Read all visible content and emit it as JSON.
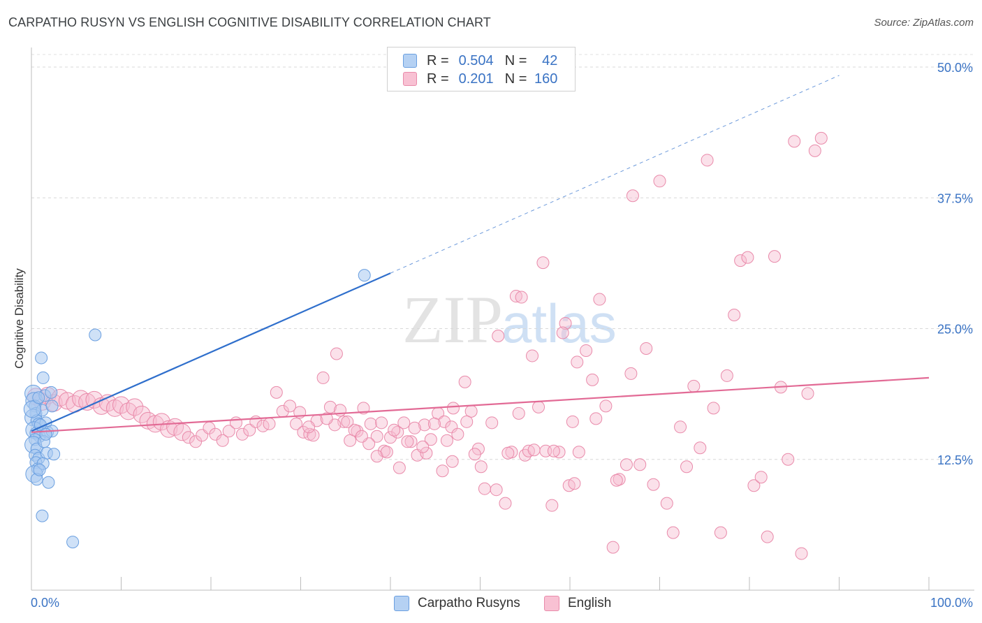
{
  "header": {
    "title": "CARPATHO RUSYN VS ENGLISH COGNITIVE DISABILITY CORRELATION CHART",
    "source": "Source: ZipAtlas.com"
  },
  "watermark": {
    "zip": "ZIP",
    "atlas": "atlas"
  },
  "legend": {
    "rows": [
      {
        "r_label": "R =",
        "r_value": "0.504",
        "n_label": "N =",
        "n_value": "42"
      },
      {
        "r_label": "R =",
        "r_value": "0.201",
        "n_label": "N =",
        "n_value": "160"
      }
    ]
  },
  "bottom_legend": [
    {
      "label": "Carpatho Rusyns"
    },
    {
      "label": "English"
    }
  ],
  "chart_data": {
    "type": "scatter",
    "title": "CARPATHO RUSYN VS ENGLISH COGNITIVE DISABILITY CORRELATION CHART",
    "xlabel": "",
    "ylabel": "Cognitive Disability",
    "xlim": [
      0,
      100
    ],
    "ylim": [
      0,
      50
    ],
    "x_tick_labels": [
      "0.0%",
      "100.0%"
    ],
    "y_ticks": [
      12.5,
      25.0,
      37.5,
      50.0
    ],
    "y_tick_labels": [
      "12.5%",
      "25.0%",
      "37.5%",
      "50.0%"
    ],
    "grid": true,
    "colors": {
      "blue_fill": "#a8c8f0",
      "blue_stroke": "#6a9fe0",
      "blue_line": "#2f6fcc",
      "pink_fill": "#f7bcd0",
      "pink_stroke": "#e98aaa",
      "pink_line": "#e26a95",
      "tick_text": "#3a73c4"
    },
    "series": [
      {
        "name": "Carpatho Rusyns",
        "color": "#a8c8f0",
        "trend": {
          "x0": 0,
          "y0": 15.2,
          "x1": 40.0,
          "y1": 30.3,
          "dashed_to_x": 90.0,
          "dashed_to_y": 49.2
        },
        "points": [
          [
            0.2,
            18.8
          ],
          [
            0.3,
            18.1
          ],
          [
            0.4,
            17.6
          ],
          [
            0.5,
            16.9
          ],
          [
            0.2,
            16.5
          ],
          [
            0.6,
            16.2
          ],
          [
            0.8,
            15.9
          ],
          [
            0.3,
            15.3
          ],
          [
            0.5,
            15.0
          ],
          [
            0.9,
            14.7
          ],
          [
            0.4,
            14.4
          ],
          [
            0.2,
            13.9
          ],
          [
            0.6,
            13.5
          ],
          [
            0.4,
            12.9
          ],
          [
            0.8,
            12.6
          ],
          [
            0.5,
            12.2
          ],
          [
            0.7,
            11.6
          ],
          [
            0.3,
            11.1
          ],
          [
            0.6,
            10.6
          ],
          [
            1.1,
            22.2
          ],
          [
            1.3,
            20.3
          ],
          [
            1.5,
            18.6
          ],
          [
            1.2,
            17.2
          ],
          [
            1.6,
            16.0
          ],
          [
            1.8,
            15.1
          ],
          [
            1.4,
            14.2
          ],
          [
            1.7,
            13.1
          ],
          [
            1.3,
            12.1
          ],
          [
            1.9,
            10.3
          ],
          [
            1.2,
            7.1
          ],
          [
            2.3,
            15.2
          ],
          [
            2.5,
            13.0
          ],
          [
            2.3,
            17.6
          ],
          [
            2.2,
            18.9
          ],
          [
            1.0,
            15.8
          ],
          [
            0.9,
            11.5
          ],
          [
            1.6,
            14.9
          ],
          [
            4.6,
            4.6
          ],
          [
            7.1,
            24.4
          ],
          [
            37.1,
            30.1
          ],
          [
            0.1,
            17.3
          ],
          [
            0.8,
            18.4
          ]
        ]
      },
      {
        "name": "English",
        "color": "#f7bcd0",
        "trend": {
          "x0": 0,
          "y0": 15.1,
          "x1": 100,
          "y1": 20.3
        },
        "points": [
          [
            0.5,
            18.5
          ],
          [
            1.2,
            18.0
          ],
          [
            1.8,
            18.6
          ],
          [
            2.5,
            17.9
          ],
          [
            3.2,
            18.4
          ],
          [
            4.0,
            18.1
          ],
          [
            4.8,
            17.8
          ],
          [
            5.5,
            18.3
          ],
          [
            6.2,
            18.0
          ],
          [
            7.0,
            18.2
          ],
          [
            7.8,
            17.6
          ],
          [
            8.5,
            17.9
          ],
          [
            9.3,
            17.4
          ],
          [
            10.0,
            17.7
          ],
          [
            10.8,
            17.1
          ],
          [
            11.5,
            17.5
          ],
          [
            12.3,
            16.8
          ],
          [
            13.0,
            16.2
          ],
          [
            13.8,
            15.9
          ],
          [
            14.5,
            16.1
          ],
          [
            15.3,
            15.4
          ],
          [
            16.0,
            15.6
          ],
          [
            16.8,
            15.1
          ],
          [
            17.5,
            14.6
          ],
          [
            18.3,
            14.2
          ],
          [
            19.0,
            14.8
          ],
          [
            19.8,
            15.5
          ],
          [
            20.5,
            14.9
          ],
          [
            21.3,
            14.3
          ],
          [
            22.0,
            15.2
          ],
          [
            22.8,
            16.0
          ],
          [
            23.5,
            14.9
          ],
          [
            24.3,
            15.3
          ],
          [
            25.0,
            16.1
          ],
          [
            25.8,
            15.7
          ],
          [
            26.5,
            15.9
          ],
          [
            27.3,
            18.9
          ],
          [
            28.0,
            17.1
          ],
          [
            28.8,
            17.6
          ],
          [
            29.5,
            15.9
          ],
          [
            30.3,
            15.1
          ],
          [
            31.0,
            14.9
          ],
          [
            31.8,
            16.2
          ],
          [
            32.5,
            20.3
          ],
          [
            33.3,
            17.5
          ],
          [
            34.0,
            22.6
          ],
          [
            34.8,
            16.1
          ],
          [
            35.5,
            14.3
          ],
          [
            36.3,
            15.2
          ],
          [
            37.0,
            17.4
          ],
          [
            37.8,
            15.9
          ],
          [
            38.5,
            14.7
          ],
          [
            39.3,
            13.3
          ],
          [
            40.0,
            14.6
          ],
          [
            40.8,
            15.1
          ],
          [
            41.5,
            16.0
          ],
          [
            42.3,
            14.2
          ],
          [
            43.0,
            12.9
          ],
          [
            43.8,
            15.8
          ],
          [
            44.5,
            14.4
          ],
          [
            45.3,
            16.9
          ],
          [
            46.0,
            16.1
          ],
          [
            46.8,
            15.6
          ],
          [
            47.5,
            14.9
          ],
          [
            48.3,
            19.9
          ],
          [
            49.0,
            17.1
          ],
          [
            49.8,
            13.5
          ],
          [
            50.5,
            9.7
          ],
          [
            51.3,
            16.0
          ],
          [
            52.0,
            24.3
          ],
          [
            52.8,
            8.3
          ],
          [
            53.5,
            13.2
          ],
          [
            54.3,
            16.9
          ],
          [
            55.0,
            12.9
          ],
          [
            55.8,
            22.4
          ],
          [
            56.5,
            17.5
          ],
          [
            57.3,
            13.3
          ],
          [
            58.0,
            8.1
          ],
          [
            58.8,
            13.2
          ],
          [
            59.5,
            25.5
          ],
          [
            60.3,
            16.1
          ],
          [
            61.0,
            13.2
          ],
          [
            61.8,
            22.9
          ],
          [
            62.5,
            20.1
          ],
          [
            63.3,
            27.8
          ],
          [
            64.0,
            17.6
          ],
          [
            64.8,
            4.1
          ],
          [
            65.5,
            10.6
          ],
          [
            66.3,
            12.0
          ],
          [
            67.0,
            37.7
          ],
          [
            67.8,
            12.0
          ],
          [
            68.5,
            23.1
          ],
          [
            69.3,
            10.1
          ],
          [
            70.0,
            39.1
          ],
          [
            70.8,
            8.3
          ],
          [
            71.5,
            5.5
          ],
          [
            72.3,
            15.6
          ],
          [
            73.0,
            11.8
          ],
          [
            73.8,
            19.5
          ],
          [
            74.5,
            13.6
          ],
          [
            75.3,
            41.1
          ],
          [
            76.0,
            17.4
          ],
          [
            76.8,
            5.5
          ],
          [
            77.5,
            20.5
          ],
          [
            78.3,
            26.3
          ],
          [
            79.0,
            31.5
          ],
          [
            79.8,
            31.8
          ],
          [
            80.5,
            10.0
          ],
          [
            81.3,
            10.8
          ],
          [
            82.0,
            5.1
          ],
          [
            82.8,
            31.9
          ],
          [
            83.5,
            19.4
          ],
          [
            84.3,
            12.5
          ],
          [
            85.0,
            42.9
          ],
          [
            85.8,
            3.5
          ],
          [
            86.5,
            18.8
          ],
          [
            87.3,
            42.0
          ],
          [
            88.0,
            43.2
          ],
          [
            47.0,
            17.4
          ],
          [
            48.5,
            16.1
          ],
          [
            38.5,
            12.8
          ],
          [
            36.0,
            15.3
          ],
          [
            41.0,
            11.7
          ],
          [
            44.0,
            13.1
          ],
          [
            57.0,
            31.3
          ],
          [
            54.0,
            28.1
          ],
          [
            54.6,
            28.0
          ],
          [
            59.2,
            24.6
          ],
          [
            60.8,
            21.8
          ],
          [
            62.9,
            16.4
          ],
          [
            59.9,
            10.0
          ],
          [
            60.5,
            10.2
          ],
          [
            66.8,
            20.7
          ],
          [
            65.2,
            10.5
          ],
          [
            39.6,
            13.2
          ],
          [
            42.7,
            15.5
          ],
          [
            44.9,
            15.9
          ],
          [
            46.3,
            14.3
          ],
          [
            50.1,
            11.8
          ],
          [
            51.8,
            9.6
          ],
          [
            53.1,
            13.1
          ],
          [
            55.4,
            13.3
          ],
          [
            56.0,
            13.4
          ],
          [
            58.2,
            13.3
          ],
          [
            49.4,
            13.0
          ],
          [
            46.9,
            12.3
          ],
          [
            45.8,
            11.4
          ],
          [
            43.6,
            13.7
          ],
          [
            41.9,
            14.2
          ],
          [
            40.4,
            15.3
          ],
          [
            39.0,
            16.0
          ],
          [
            37.6,
            14.0
          ],
          [
            36.8,
            14.7
          ],
          [
            35.2,
            16.1
          ],
          [
            34.4,
            17.2
          ],
          [
            33.8,
            15.8
          ],
          [
            32.9,
            16.4
          ],
          [
            31.4,
            14.8
          ],
          [
            30.9,
            15.6
          ],
          [
            29.9,
            17.0
          ]
        ]
      }
    ]
  }
}
